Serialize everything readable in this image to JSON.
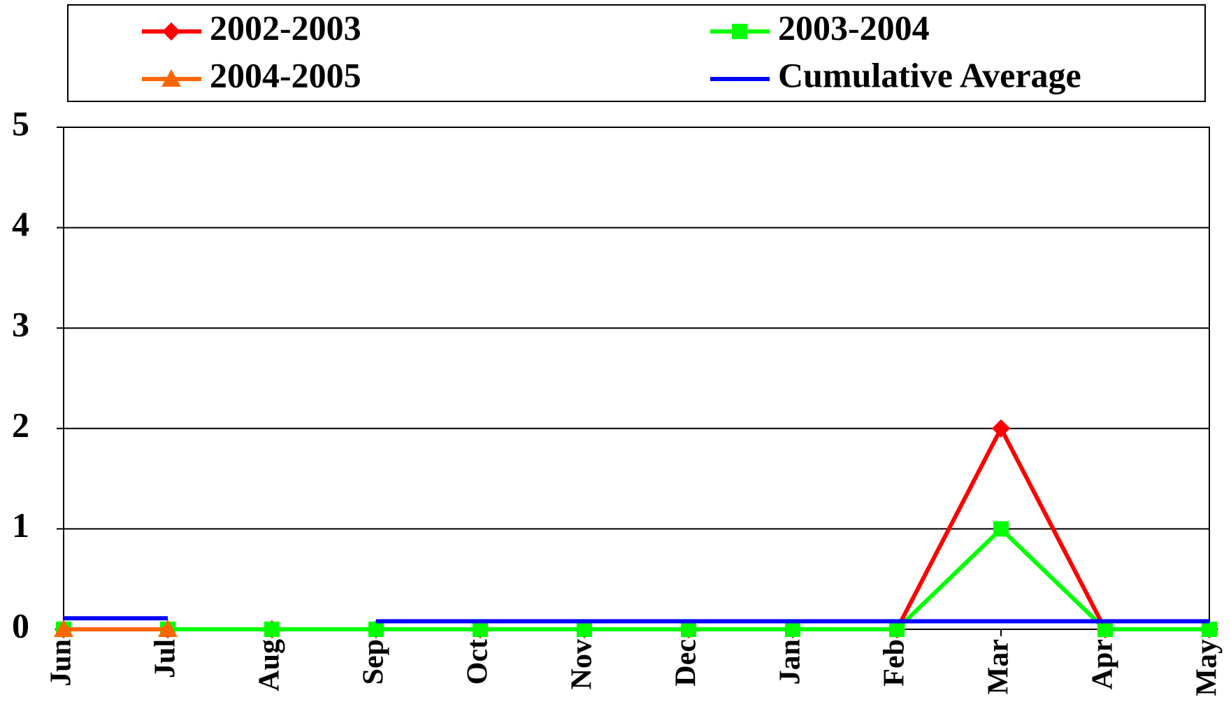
{
  "chart_data": {
    "type": "line",
    "categories": [
      "Jun",
      "Jul",
      "Aug",
      "Sep",
      "Oct",
      "Nov",
      "Dec",
      "Jan",
      "Feb",
      "Mar",
      "Apr",
      "May"
    ],
    "series": [
      {
        "name": "2002-2003",
        "color": "#ff0000",
        "marker": "diamond",
        "values": [
          0,
          0,
          0,
          0,
          0,
          0,
          0,
          0,
          0,
          2,
          0,
          0
        ]
      },
      {
        "name": "2003-2004",
        "color": "#00ff00",
        "marker": "square",
        "values": [
          0,
          0,
          0,
          0,
          0,
          0,
          0,
          0,
          0,
          1,
          0,
          0
        ]
      },
      {
        "name": "2004-2005",
        "color": "#ff6600",
        "marker": "triangle",
        "values": [
          0,
          0,
          null,
          null,
          null,
          null,
          null,
          null,
          null,
          null,
          null,
          null
        ]
      },
      {
        "name": "Cumulative Average",
        "color": "#0000ff",
        "marker": "none",
        "values": [
          0.11,
          0.11,
          null,
          0.08,
          0.08,
          0.08,
          0.08,
          0.08,
          0.08,
          0.08,
          0.08,
          0.08
        ]
      }
    ],
    "ylim": [
      0,
      5
    ],
    "yticks": [
      0,
      1,
      2,
      3,
      4,
      5
    ],
    "grid": true,
    "legend": "top"
  }
}
